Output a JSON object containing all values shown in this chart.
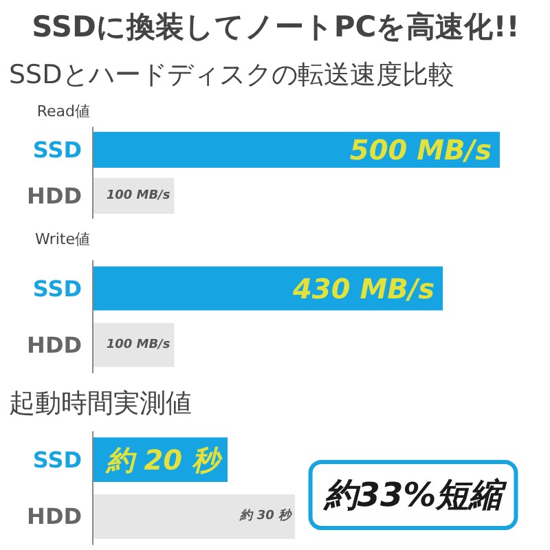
{
  "chart_data": [
    {
      "type": "bar",
      "orientation": "horizontal",
      "title": "SSDに換装してノートPCを高速化!!",
      "subtitle": "SSDとハードディスクの転送速度比較",
      "ylabel": "Read値",
      "categories": [
        "SSD",
        "HDD"
      ],
      "values": [
        500,
        100
      ],
      "colors": [
        "#16a4e2",
        "#e6e6e6"
      ],
      "value_labels": [
        "500 MB/s",
        "100 MB/s"
      ]
    },
    {
      "type": "bar",
      "orientation": "horizontal",
      "ylabel": "Write値",
      "categories": [
        "SSD",
        "HDD"
      ],
      "values": [
        430,
        100
      ],
      "colors": [
        "#16a4e2",
        "#e6e6e6"
      ],
      "value_labels": [
        "430 MB/s",
        "100 MB/s"
      ]
    },
    {
      "type": "bar",
      "orientation": "horizontal",
      "title": "起動時間実測値",
      "categories": [
        "SSD",
        "HDD"
      ],
      "values": [
        20,
        30
      ],
      "colors": [
        "#16a4e2",
        "#e6e6e6"
      ],
      "value_labels": [
        "約 20 秒",
        "約 30 秒"
      ],
      "annotations": [
        "約33%短縮"
      ]
    }
  ]
}
